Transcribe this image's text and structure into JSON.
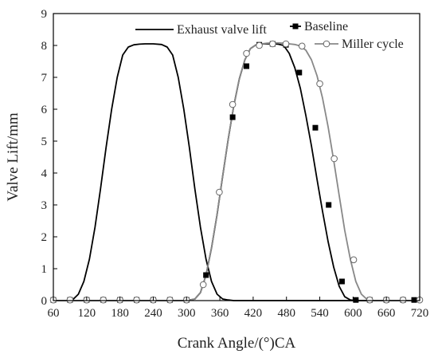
{
  "chart_data": {
    "type": "line",
    "xlabel": "Crank Angle/(°)CA",
    "ylabel": "Valve Lift/mm",
    "xlim": [
      60,
      720
    ],
    "ylim": [
      0,
      9
    ],
    "x_ticks": [
      60,
      120,
      180,
      240,
      300,
      360,
      420,
      480,
      540,
      600,
      660,
      720
    ],
    "y_ticks": [
      0,
      1,
      2,
      3,
      4,
      5,
      6,
      7,
      8,
      9
    ],
    "legend_position": "top",
    "series": [
      {
        "name": "Exhaust valve lift",
        "color": "#000000",
        "marker": "none",
        "x": [
          60,
          88,
          95,
          105,
          115,
          125,
          135,
          145,
          155,
          165,
          175,
          185,
          195,
          205,
          215,
          225,
          240,
          255,
          265,
          275,
          285,
          295,
          305,
          315,
          325,
          335,
          345,
          355,
          365,
          375,
          385,
          392,
          720
        ],
        "y": [
          0,
          0,
          0.03,
          0.2,
          0.6,
          1.3,
          2.3,
          3.5,
          4.8,
          6.0,
          7.0,
          7.7,
          7.95,
          8.02,
          8.04,
          8.05,
          8.05,
          8.03,
          7.95,
          7.7,
          7.0,
          6.0,
          4.8,
          3.5,
          2.3,
          1.3,
          0.6,
          0.2,
          0.05,
          0.02,
          0,
          0,
          0
        ]
      },
      {
        "name": "Baseline",
        "color": "#000000",
        "marker": "square",
        "x": [
          60,
          300,
          315,
          325,
          335,
          345,
          355,
          365,
          375,
          385,
          395,
          405,
          415,
          425,
          435,
          445,
          455,
          465,
          475,
          485,
          495,
          505,
          515,
          525,
          535,
          545,
          555,
          565,
          575,
          585,
          595,
          605,
          615,
          720
        ],
        "y": [
          0,
          0,
          0.05,
          0.25,
          0.8,
          1.65,
          2.7,
          3.9,
          5.05,
          6.1,
          6.95,
          7.55,
          7.9,
          8.02,
          8.05,
          8.05,
          8.05,
          8.04,
          8.0,
          7.75,
          7.3,
          6.65,
          5.8,
          4.85,
          3.8,
          2.8,
          1.85,
          1.05,
          0.45,
          0.12,
          0.02,
          0,
          0,
          0
        ],
        "markers": {
          "x": [
            60,
            90,
            120,
            150,
            180,
            210,
            240,
            270,
            300,
            335,
            383,
            408,
            431,
            455,
            479,
            503,
            532,
            556,
            580,
            605,
            630,
            660,
            690,
            710
          ],
          "y": [
            0.02,
            0.02,
            0.02,
            0.02,
            0.02,
            0.02,
            0.02,
            0.02,
            0.02,
            0.8,
            5.75,
            7.35,
            8.02,
            8.05,
            8.02,
            7.15,
            5.42,
            3.0,
            0.6,
            0.02,
            0.02,
            0.02,
            0.02,
            0.02
          ]
        }
      },
      {
        "name": "Miller cycle",
        "color": "#888888",
        "marker": "circle",
        "x": [
          60,
          300,
          315,
          325,
          335,
          345,
          355,
          365,
          375,
          385,
          395,
          405,
          415,
          425,
          435,
          445,
          455,
          465,
          475,
          485,
          495,
          505,
          515,
          525,
          535,
          545,
          555,
          565,
          575,
          585,
          595,
          605,
          615,
          625,
          635,
          720
        ],
        "y": [
          0,
          0,
          0.05,
          0.25,
          0.8,
          1.65,
          2.7,
          3.9,
          5.05,
          6.1,
          6.95,
          7.55,
          7.9,
          8.02,
          8.05,
          8.07,
          8.08,
          8.08,
          8.07,
          8.05,
          8.03,
          7.98,
          7.85,
          7.55,
          7.05,
          6.35,
          5.45,
          4.4,
          3.3,
          2.2,
          1.3,
          0.6,
          0.2,
          0.04,
          0,
          0
        ],
        "markers": {
          "x": [
            60,
            90,
            120,
            150,
            180,
            210,
            240,
            270,
            300,
            330,
            359,
            383,
            408,
            431,
            455,
            479,
            508,
            540,
            566,
            601,
            630,
            660,
            690,
            720
          ],
          "y": [
            0.02,
            0.02,
            0.02,
            0.02,
            0.02,
            0.02,
            0.02,
            0.02,
            0.02,
            0.5,
            3.4,
            6.15,
            7.75,
            8.0,
            8.05,
            8.05,
            7.98,
            6.8,
            4.45,
            1.28,
            0.02,
            0.02,
            0.02,
            0.02
          ]
        }
      }
    ]
  }
}
